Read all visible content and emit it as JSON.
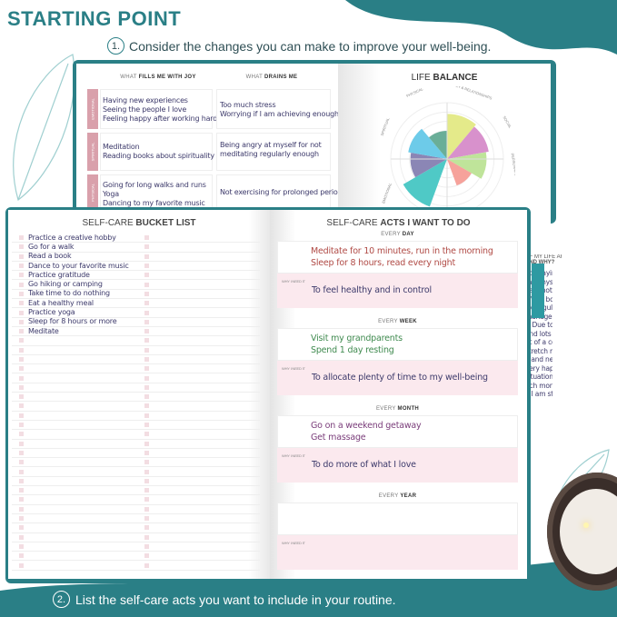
{
  "header": {
    "title": "STARTING POINT",
    "step1_num": "1.",
    "step1_text": "Consider the changes you can make to improve your well-being.",
    "step2_num": "2.",
    "step2_text": "List the self-care acts you want to include in your routine."
  },
  "colors": {
    "teal": "#2a7f86",
    "pink_tag": "#d9a0ab",
    "why_bg": "#fbe9ee"
  },
  "joy_table": {
    "col1_pre": "WHAT",
    "col1_bold": "FILLS ME WITH JOY",
    "col2_pre": "WHAT",
    "col2_bold": "DRAINS ME",
    "rows": [
      {
        "tag": "EMOTIONAL",
        "joy": "Having new experiences\nSeeing the people I love\nFeeling happy after working hard",
        "drain": "Too much stress\nWorrying if I am achieving enough"
      },
      {
        "tag": "SPIRITUAL",
        "joy": "Meditation\nReading books about spirituality",
        "drain": "Being angry at myself for not\nmeditating regularly enough"
      },
      {
        "tag": "PHYSICAL",
        "joy": "Going for long walks and runs\nYoga\nDancing to my favorite music",
        "drain": "Not exercising for prolonged periods"
      }
    ]
  },
  "life_balance": {
    "title_pre": "LIFE",
    "title_bold": "BALANCE",
    "labels": [
      "PHYSICAL",
      "FAMILY & RELATIONSHIPS",
      "SOCIAL",
      "PERSONAL DEVELOPMENT",
      "EMOTIONAL",
      "SPIRITUAL"
    ],
    "segments": [
      {
        "color": "#e4ea8a",
        "level": 0.8
      },
      {
        "color": "#d891cc",
        "level": 0.75
      },
      {
        "color": "#bfe49a",
        "level": 0.7
      },
      {
        "color": "#f6a29b",
        "level": 0.5
      },
      {
        "color": "#ffffff",
        "level": 0
      },
      {
        "color": "#4fc9c6",
        "level": 0.9
      },
      {
        "color": "#8b86b5",
        "level": 0.65
      },
      {
        "color": "#6dcbe9",
        "level": 0.7
      },
      {
        "color": "#6aae98",
        "level": 0.5
      }
    ]
  },
  "back_right": {
    "question_a": "OF MY LIFE ARE",
    "question_b": "AND WHY?",
    "answer": "not paying enough\nmy physical\nI am not taking\nof my body.\nfor regular\nmanage to\ny. Due to my\nend lots of time\nnt of a computer,\nstretch more to\nk and neck relax. I\nvery happy about\nsituation, I am not\nuch money as I\ne I am still a"
  },
  "bucket_list": {
    "title_pre": "SELF-CARE",
    "title_bold": "BUCKET LIST",
    "items": [
      "Practice a creative hobby",
      "Go for a walk",
      "Read a book",
      "Dance to your favorite music",
      "Practice gratitude",
      "Go hiking or camping",
      "Take time to do nothing",
      "Eat a healthy meal",
      "Practice yoga",
      "Sleep for 8 hours or more",
      "Meditate"
    ]
  },
  "acts": {
    "title_pre": "SELF-CARE",
    "title_bold": "ACTS I WANT TO DO",
    "why_label": "WHY I NEED IT",
    "sections": [
      {
        "pre": "EVERY",
        "bold": "DAY",
        "acts": "Meditate for 10 minutes, run in the morning\nSleep for 8 hours, read every night",
        "color": "#b04a45",
        "why": "To feel healthy and in control"
      },
      {
        "pre": "EVERY",
        "bold": "WEEK",
        "acts": "Visit my grandparents\nSpend 1 day resting",
        "color": "#3f8a4f",
        "why": "To allocate plenty of time to my well-being"
      },
      {
        "pre": "EVERY",
        "bold": "MONTH",
        "acts": "Go on a weekend getaway\nGet massage",
        "color": "#7a3d7a",
        "why": "To do more of what I love"
      },
      {
        "pre": "EVERY",
        "bold": "YEAR",
        "acts": "",
        "color": "#3d3a6b",
        "why": ""
      }
    ]
  }
}
